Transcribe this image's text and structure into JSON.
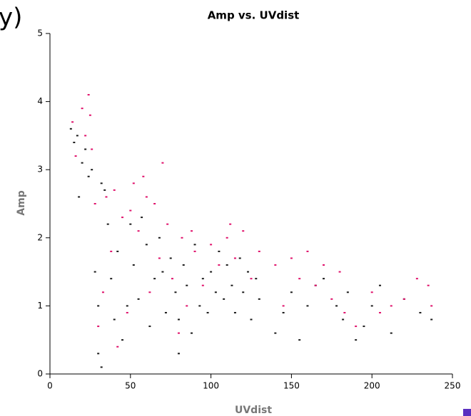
{
  "side_fragment": "y)",
  "chart_data": {
    "type": "scatter",
    "title": "Amp vs. UVdist",
    "x_label": "UVdist",
    "y_label": "Amp",
    "xlim": [
      0,
      250
    ],
    "ylim": [
      0,
      5
    ],
    "xticks": [
      0,
      50,
      100,
      150,
      200,
      250
    ],
    "yticks": [
      0,
      1,
      2,
      3,
      4,
      5
    ],
    "series": [
      {
        "color": "#1a1a1a",
        "x": [
          13,
          15,
          17,
          18,
          20,
          22,
          24,
          26,
          28,
          30,
          30,
          32,
          32,
          34,
          36,
          38,
          40,
          42,
          45,
          48,
          50,
          52,
          55,
          57,
          60,
          62,
          65,
          68,
          70,
          72,
          75,
          78,
          80,
          80,
          83,
          85,
          88,
          90,
          93,
          95,
          98,
          100,
          103,
          105,
          108,
          110,
          113,
          115,
          118,
          120,
          123,
          125,
          128,
          130,
          140,
          145,
          150,
          155,
          160,
          165,
          170,
          178,
          182,
          185,
          190,
          195,
          200,
          205,
          212,
          220,
          230,
          237
        ],
        "values": [
          3.6,
          3.4,
          3.5,
          2.6,
          3.1,
          3.3,
          2.9,
          3.0,
          1.5,
          0.3,
          1.0,
          2.8,
          0.1,
          2.7,
          2.2,
          1.4,
          0.8,
          1.8,
          0.5,
          1.0,
          2.2,
          1.6,
          1.1,
          2.3,
          1.9,
          0.7,
          1.4,
          2.0,
          1.5,
          0.9,
          1.7,
          1.2,
          0.3,
          0.8,
          1.6,
          1.3,
          0.6,
          1.9,
          1.0,
          1.4,
          0.9,
          1.5,
          1.2,
          1.8,
          1.1,
          1.6,
          1.3,
          0.9,
          1.7,
          1.2,
          1.5,
          0.8,
          1.4,
          1.1,
          0.6,
          0.9,
          1.2,
          0.5,
          1.0,
          1.3,
          1.4,
          1.0,
          0.8,
          1.2,
          0.5,
          0.7,
          1.0,
          1.3,
          0.6,
          1.1,
          0.9,
          0.8
        ]
      },
      {
        "color": "#e0106a",
        "x": [
          14,
          16,
          20,
          22,
          24,
          25,
          26,
          28,
          30,
          33,
          35,
          38,
          40,
          42,
          45,
          48,
          50,
          52,
          55,
          58,
          60,
          62,
          65,
          68,
          70,
          73,
          76,
          80,
          82,
          85,
          88,
          90,
          95,
          100,
          105,
          110,
          112,
          115,
          120,
          125,
          130,
          140,
          145,
          150,
          155,
          160,
          165,
          170,
          175,
          180,
          183,
          190,
          200,
          205,
          212,
          220,
          228,
          235,
          237
        ],
        "values": [
          3.7,
          3.2,
          3.9,
          3.5,
          4.1,
          3.8,
          3.3,
          2.5,
          0.7,
          1.2,
          2.6,
          1.8,
          2.7,
          0.4,
          2.3,
          0.9,
          2.4,
          2.8,
          2.1,
          2.9,
          2.6,
          1.2,
          2.5,
          1.7,
          3.1,
          2.2,
          1.4,
          0.6,
          2.0,
          1.0,
          2.1,
          1.8,
          1.3,
          1.9,
          1.6,
          2.0,
          2.2,
          1.7,
          2.1,
          1.4,
          1.8,
          1.6,
          1.0,
          1.7,
          1.4,
          1.8,
          1.3,
          1.6,
          1.1,
          1.5,
          0.9,
          0.7,
          1.2,
          0.9,
          1.0,
          1.1,
          1.4,
          1.3,
          1.0
        ]
      }
    ]
  }
}
